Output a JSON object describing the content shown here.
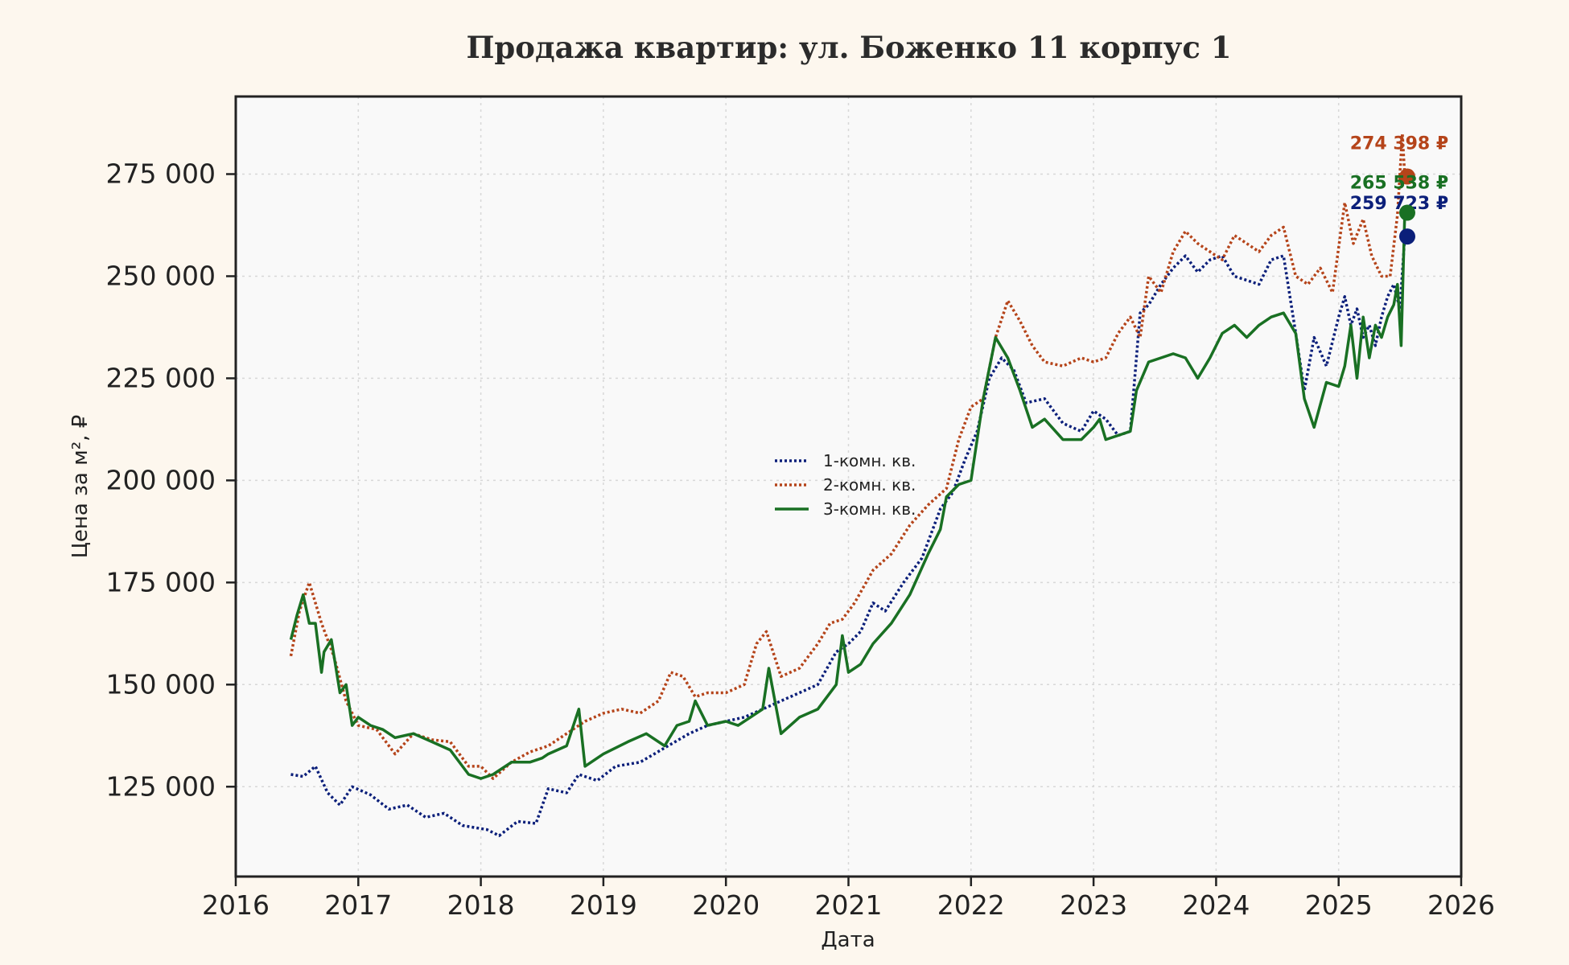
{
  "chart_data": {
    "type": "line",
    "title": "Продажа квартир: ул. Боженко 11 корпус 1",
    "xlabel": "Дата",
    "ylabel": "Цена за м², ₽",
    "xlim": [
      2016.0,
      2026.0
    ],
    "ylim": [
      103000,
      294000
    ],
    "x_ticks": [
      "2016",
      "2017",
      "2018",
      "2019",
      "2020",
      "2021",
      "2022",
      "2023",
      "2024",
      "2025",
      "2026"
    ],
    "y_ticks": [
      "125 000",
      "150 000",
      "175 000",
      "200 000",
      "225 000",
      "250 000",
      "275 000"
    ],
    "y_tick_values": [
      125000,
      150000,
      175000,
      200000,
      225000,
      250000,
      275000
    ],
    "grid": true,
    "legend_position": "center",
    "series": [
      {
        "name": "1-комн. кв.",
        "color": "#0b1f7a",
        "style": "dotted",
        "end_label": "259 723 ₽",
        "end_value": 259723,
        "x": [
          2016.45,
          2016.55,
          2016.65,
          2016.75,
          2016.85,
          2016.95,
          2017.1,
          2017.25,
          2017.4,
          2017.55,
          2017.7,
          2017.85,
          2017.95,
          2018.05,
          2018.15,
          2018.3,
          2018.45,
          2018.55,
          2018.7,
          2018.8,
          2018.95,
          2019.1,
          2019.3,
          2019.5,
          2019.7,
          2019.85,
          2020.0,
          2020.15,
          2020.3,
          2020.45,
          2020.6,
          2020.75,
          2020.9,
          2021.0,
          2021.1,
          2021.2,
          2021.3,
          2021.45,
          2021.6,
          2021.75,
          2021.85,
          2021.95,
          2022.05,
          2022.15,
          2022.25,
          2022.35,
          2022.45,
          2022.6,
          2022.75,
          2022.9,
          2023.0,
          2023.1,
          2023.2,
          2023.3,
          2023.38,
          2023.45,
          2023.55,
          2023.65,
          2023.75,
          2023.85,
          2023.95,
          2024.05,
          2024.15,
          2024.25,
          2024.35,
          2024.45,
          2024.55,
          2024.65,
          2024.72,
          2024.8,
          2024.9,
          2025.0,
          2025.05,
          2025.1,
          2025.15,
          2025.2,
          2025.25,
          2025.3,
          2025.35,
          2025.4,
          2025.45,
          2025.5,
          2025.54
        ],
        "y": [
          128000,
          127500,
          130000,
          123500,
          120500,
          125000,
          123000,
          119500,
          120500,
          117500,
          118500,
          115500,
          115000,
          114500,
          113000,
          116500,
          116000,
          124500,
          123500,
          128000,
          126500,
          130000,
          131000,
          134500,
          138000,
          140000,
          141000,
          142000,
          144000,
          146000,
          148000,
          150000,
          158000,
          160000,
          163000,
          170000,
          168000,
          175000,
          181000,
          193000,
          197000,
          205000,
          212000,
          225000,
          230000,
          227000,
          219000,
          220000,
          214000,
          212000,
          217000,
          215000,
          211000,
          212000,
          241000,
          243000,
          248000,
          252000,
          255000,
          251000,
          254000,
          255000,
          250000,
          249000,
          248000,
          254000,
          255000,
          236000,
          222000,
          235000,
          228000,
          240000,
          245000,
          238000,
          242000,
          235000,
          238000,
          233000,
          240000,
          245000,
          248000,
          242000,
          259723
        ]
      },
      {
        "name": "2-комн. кв.",
        "color": "#b5441a",
        "style": "dotted",
        "end_label": "274 398 ₽",
        "end_value": 274398,
        "x": [
          2016.45,
          2016.52,
          2016.6,
          2016.7,
          2016.8,
          2016.9,
          2017.0,
          2017.15,
          2017.3,
          2017.45,
          2017.6,
          2017.75,
          2017.9,
          2018.0,
          2018.1,
          2018.25,
          2018.4,
          2018.55,
          2018.7,
          2018.85,
          2019.0,
          2019.15,
          2019.3,
          2019.45,
          2019.55,
          2019.65,
          2019.75,
          2019.85,
          2020.0,
          2020.15,
          2020.25,
          2020.33,
          2020.45,
          2020.6,
          2020.75,
          2020.85,
          2020.95,
          2021.05,
          2021.2,
          2021.35,
          2021.5,
          2021.65,
          2021.8,
          2021.9,
          2022.0,
          2022.1,
          2022.2,
          2022.3,
          2022.4,
          2022.5,
          2022.6,
          2022.75,
          2022.9,
          2023.0,
          2023.1,
          2023.2,
          2023.3,
          2023.38,
          2023.45,
          2023.55,
          2023.65,
          2023.75,
          2023.85,
          2023.95,
          2024.05,
          2024.15,
          2024.25,
          2024.35,
          2024.45,
          2024.55,
          2024.65,
          2024.75,
          2024.85,
          2024.95,
          2025.05,
          2025.12,
          2025.2,
          2025.27,
          2025.35,
          2025.42,
          2025.48,
          2025.52,
          2025.54
        ],
        "y": [
          157000,
          168000,
          175000,
          165000,
          157000,
          146000,
          140000,
          139000,
          133000,
          138000,
          136500,
          136000,
          130000,
          130000,
          127000,
          131000,
          133500,
          135000,
          138000,
          141000,
          143000,
          144000,
          143000,
          146000,
          153000,
          152000,
          147000,
          148000,
          148000,
          150000,
          160000,
          163000,
          152000,
          154000,
          160000,
          165000,
          166000,
          170000,
          178000,
          182000,
          189000,
          194000,
          198000,
          210000,
          218000,
          220000,
          235000,
          244000,
          239000,
          233000,
          229000,
          228000,
          230000,
          229000,
          230000,
          236000,
          240000,
          235000,
          250000,
          246000,
          256000,
          261000,
          258000,
          256000,
          254000,
          260000,
          258000,
          256000,
          260000,
          262000,
          250000,
          248000,
          252000,
          246000,
          268000,
          258000,
          264000,
          255000,
          250000,
          250000,
          265000,
          285000,
          274398
        ]
      },
      {
        "name": "3-комн. кв.",
        "color": "#197023",
        "style": "solid",
        "end_label": "265 538 ₽",
        "end_value": 265538,
        "x": [
          2016.45,
          2016.5,
          2016.55,
          2016.6,
          2016.65,
          2016.7,
          2016.72,
          2016.78,
          2016.85,
          2016.9,
          2016.95,
          2017.0,
          2017.1,
          2017.2,
          2017.3,
          2017.45,
          2017.6,
          2017.75,
          2017.9,
          2018.0,
          2018.1,
          2018.25,
          2018.4,
          2018.5,
          2018.55,
          2018.7,
          2018.8,
          2018.85,
          2019.0,
          2019.2,
          2019.35,
          2019.5,
          2019.6,
          2019.7,
          2019.75,
          2019.85,
          2020.0,
          2020.1,
          2020.2,
          2020.3,
          2020.35,
          2020.45,
          2020.6,
          2020.75,
          2020.9,
          2020.95,
          2021.0,
          2021.1,
          2021.2,
          2021.35,
          2021.5,
          2021.65,
          2021.75,
          2021.8,
          2021.9,
          2022.0,
          2022.05,
          2022.1,
          2022.2,
          2022.3,
          2022.4,
          2022.5,
          2022.6,
          2022.75,
          2022.9,
          2023.0,
          2023.05,
          2023.1,
          2023.2,
          2023.3,
          2023.35,
          2023.45,
          2023.55,
          2023.65,
          2023.75,
          2023.85,
          2023.95,
          2024.05,
          2024.15,
          2024.25,
          2024.35,
          2024.45,
          2024.55,
          2024.65,
          2024.72,
          2024.8,
          2024.9,
          2025.0,
          2025.05,
          2025.1,
          2025.15,
          2025.2,
          2025.25,
          2025.3,
          2025.35,
          2025.4,
          2025.45,
          2025.48,
          2025.51,
          2025.54
        ],
        "y": [
          161000,
          167000,
          172000,
          165000,
          165000,
          153000,
          158000,
          161000,
          148000,
          150000,
          140000,
          142000,
          140000,
          139000,
          137000,
          138000,
          136000,
          134000,
          128000,
          127000,
          128000,
          131000,
          131000,
          132000,
          133000,
          135000,
          144000,
          130000,
          133000,
          136000,
          138000,
          135000,
          140000,
          141000,
          146000,
          140000,
          141000,
          140000,
          142000,
          144000,
          154000,
          138000,
          142000,
          144000,
          150000,
          162000,
          153000,
          155000,
          160000,
          165000,
          172000,
          182000,
          188000,
          196000,
          199000,
          200000,
          210000,
          220000,
          235000,
          230000,
          222000,
          213000,
          215000,
          210000,
          210000,
          213000,
          215000,
          210000,
          211000,
          212000,
          222000,
          229000,
          230000,
          231000,
          230000,
          225000,
          230000,
          236000,
          238000,
          235000,
          238000,
          240000,
          241000,
          236000,
          220000,
          213000,
          224000,
          223000,
          228000,
          238000,
          225000,
          240000,
          230000,
          238000,
          235000,
          240000,
          243000,
          248000,
          233000,
          265538
        ]
      }
    ]
  }
}
